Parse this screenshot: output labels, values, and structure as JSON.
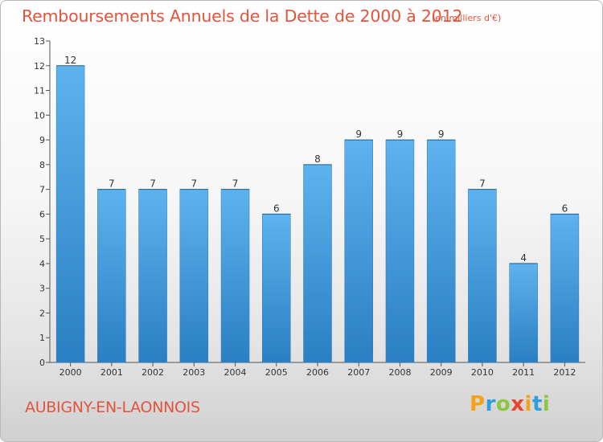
{
  "chart_data": {
    "type": "bar",
    "title": "Remboursements Annuels de la Dette de 2000 à 2012",
    "subtitle": "(en milliers d'€)",
    "xlabel": "",
    "ylabel": "",
    "categories": [
      "2000",
      "2001",
      "2002",
      "2003",
      "2004",
      "2005",
      "2006",
      "2007",
      "2008",
      "2009",
      "2010",
      "2011",
      "2012"
    ],
    "values": [
      12,
      7,
      7,
      7,
      7,
      6,
      8,
      9,
      9,
      9,
      7,
      4,
      6
    ],
    "data_labels": [
      "12",
      "7",
      "7",
      "7",
      "7",
      "6",
      "8",
      "9",
      "9",
      "9",
      "7",
      "4",
      "6"
    ],
    "ylim": [
      0,
      13
    ],
    "yticks": [
      0,
      1,
      2,
      3,
      4,
      5,
      6,
      7,
      8,
      9,
      10,
      11,
      12,
      13
    ],
    "grid": false,
    "legend": "none",
    "bar_color": "#4a9fdf"
  },
  "location": "AUBIGNY-EN-LAONNOIS",
  "logo": {
    "text": "Proxiti",
    "colors": [
      "#f5a21b",
      "#2e9ee0",
      "#8cc63f",
      "#e8472f",
      "#f5a21b",
      "#2e9ee0",
      "#8cc63f"
    ]
  }
}
